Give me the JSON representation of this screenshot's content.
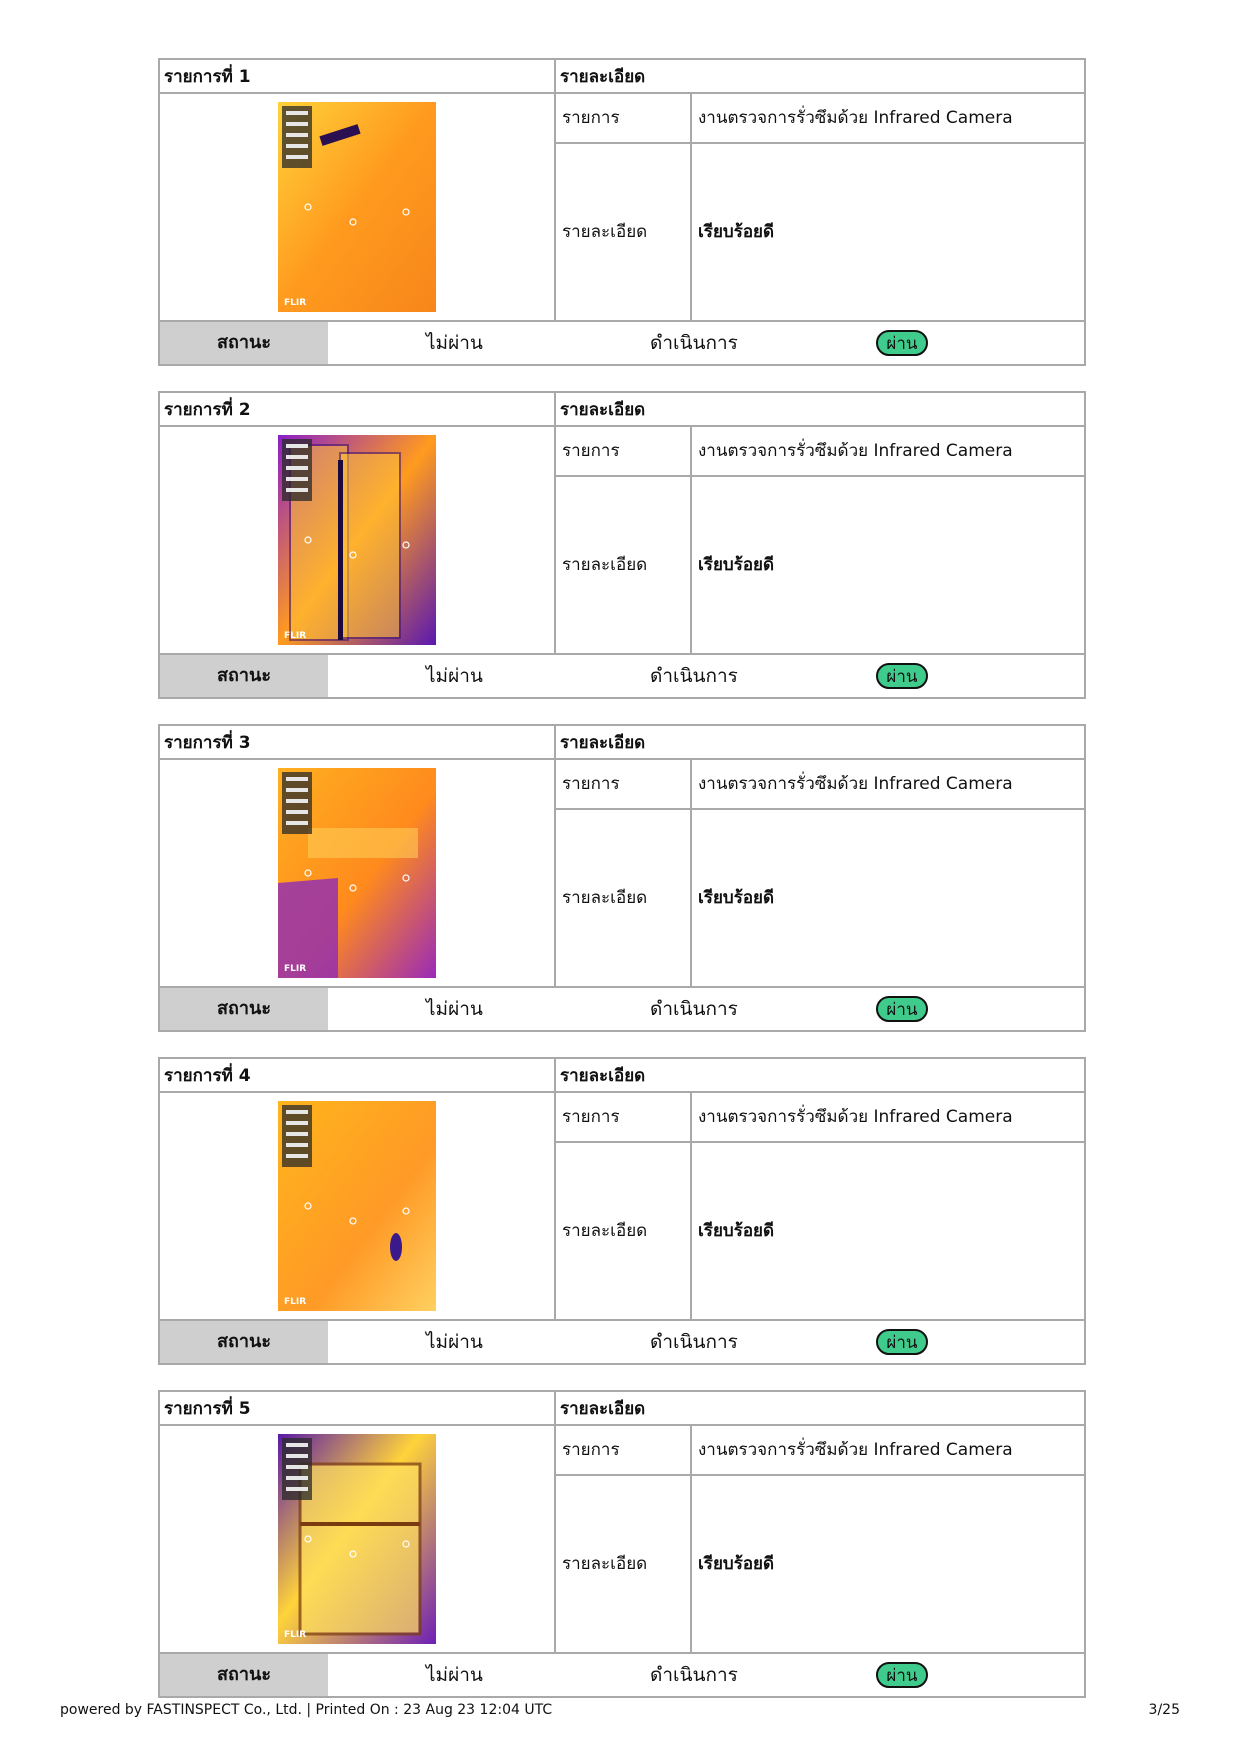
{
  "items": [
    {
      "title": "รายการที่ 1",
      "detail_header": "รายละเอียด",
      "item_label": "รายการ",
      "item_value": "งานตรวจการรั่วซึมด้วย Infrared Camera",
      "detail_label": "รายละเอียด",
      "detail_value": "เรียบร้อยดี",
      "status_label": "สถานะ",
      "status_options": [
        "ไม่ผ่าน",
        "ดำเนินการ",
        "ผ่าน"
      ],
      "selected_status": "ผ่าน",
      "photo_theme": "orange"
    },
    {
      "title": "รายการที่ 2",
      "detail_header": "รายละเอียด",
      "item_label": "รายการ",
      "item_value": "งานตรวจการรั่วซึมด้วย Infrared Camera",
      "detail_label": "รายละเอียด",
      "detail_value": "เรียบร้อยดี",
      "status_label": "สถานะ",
      "status_options": [
        "ไม่ผ่าน",
        "ดำเนินการ",
        "ผ่าน"
      ],
      "selected_status": "ผ่าน",
      "photo_theme": "purple-door"
    },
    {
      "title": "รายการที่ 3",
      "detail_header": "รายละเอียด",
      "item_label": "รายการ",
      "item_value": "งานตรวจการรั่วซึมด้วย Infrared Camera",
      "detail_label": "รายละเอียด",
      "detail_value": "เรียบร้อยดี",
      "status_label": "สถานะ",
      "status_options": [
        "ไม่ผ่าน",
        "ดำเนินการ",
        "ผ่าน"
      ],
      "selected_status": "ผ่าน",
      "photo_theme": "corner"
    },
    {
      "title": "รายการที่ 4",
      "detail_header": "รายละเอียด",
      "item_label": "รายการ",
      "item_value": "งานตรวจการรั่วซึมด้วย Infrared Camera",
      "detail_label": "รายละเอียด",
      "detail_value": "เรียบร้อยดี",
      "status_label": "สถานะ",
      "status_options": [
        "ไม่ผ่าน",
        "ดำเนินการ",
        "ผ่าน"
      ],
      "selected_status": "ผ่าน",
      "photo_theme": "orange-wall"
    },
    {
      "title": "รายการที่ 5",
      "detail_header": "รายละเอียด",
      "item_label": "รายการ",
      "item_value": "งานตรวจการรั่วซึมด้วย Infrared Camera",
      "detail_label": "รายละเอียด",
      "detail_value": "เรียบร้อยดี",
      "status_label": "สถานะ",
      "status_options": [
        "ไม่ผ่าน",
        "ดำเนินการ",
        "ผ่าน"
      ],
      "selected_status": "ผ่าน",
      "photo_theme": "purple-window"
    }
  ],
  "photo_brand": "FLIR",
  "pass_color": "#3ecb8c",
  "footer": {
    "left": "powered by FASTINSPECT Co., Ltd. | Printed On : 23 Aug 23 12:04 UTC",
    "page": "3/25"
  }
}
